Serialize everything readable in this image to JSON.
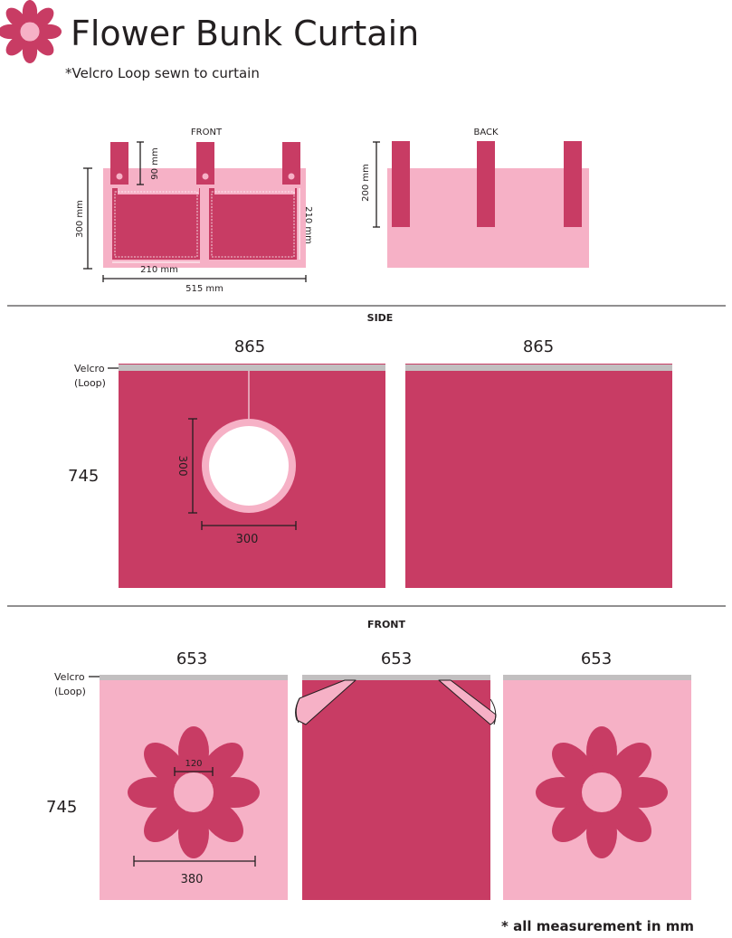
{
  "title": "Flower Bunk Curtain",
  "subtitle": "*Velcro Loop sewn to curtain",
  "colors": {
    "dark_pink": "#c83c64",
    "light_pink": "#f6b1c6",
    "velcro": "#c2bfc0",
    "text": "#231f20"
  },
  "pocket_diagram": {
    "front_label": "FRONT",
    "back_label": "BACK",
    "strap_height": "90 mm",
    "height": "300 mm",
    "pocket_width": "210 mm",
    "pocket_height": "210 mm",
    "width": "515 mm",
    "back_strap_height": "200 mm"
  },
  "side": {
    "label": "SIDE",
    "panel_widths": [
      "865",
      "865"
    ],
    "height": "745",
    "velcro_label": "Velcro",
    "velcro_sub": "(Loop)",
    "window_height": "300",
    "window_width": "300"
  },
  "front": {
    "label": "FRONT",
    "panel_widths": [
      "653",
      "653",
      "653"
    ],
    "height": "745",
    "velcro_label": "Velcro",
    "velcro_sub": "(Loop)",
    "flower_center": "120",
    "flower_width": "380"
  },
  "footnote": "* all measurement in mm"
}
